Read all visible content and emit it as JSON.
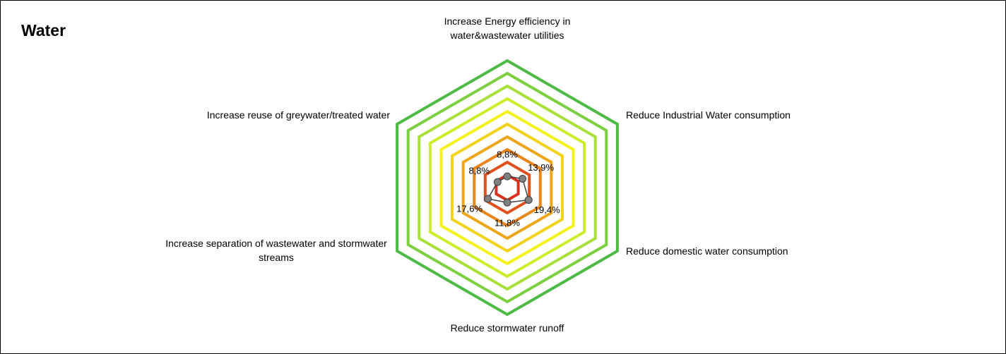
{
  "chart_data": {
    "type": "radar",
    "title": "Water",
    "categories": [
      "Increase Energy efficiency in water&wastewater utilities",
      "Reduce Industrial Water consumption",
      "Reduce domestic water consumption",
      "Reduce stormwater runoff",
      "Increase separation of wastewater and stormwater streams",
      "Increase reuse of greywater/treated water"
    ],
    "series": [
      {
        "color": "#404040",
        "marker_color": "#808080",
        "values": [
          8.8,
          13.9,
          19.4,
          11.8,
          17.6,
          8.8
        ],
        "value_labels": [
          "8,8%",
          "13,9%",
          "19,4%",
          "11,8%",
          "17,6%",
          "8,8%"
        ]
      }
    ],
    "rlim": [
      0,
      100
    ],
    "rticks": [
      10,
      20,
      30,
      40,
      50,
      60,
      70,
      80,
      90,
      100
    ],
    "ring_colors": [
      "#d9301e",
      "#e0501c",
      "#e8861a",
      "#eea51a",
      "#f2d21a",
      "#f4f21a",
      "#ccee2a",
      "#a8e03a",
      "#7ccf40",
      "#4cbb44"
    ],
    "grid": true
  }
}
